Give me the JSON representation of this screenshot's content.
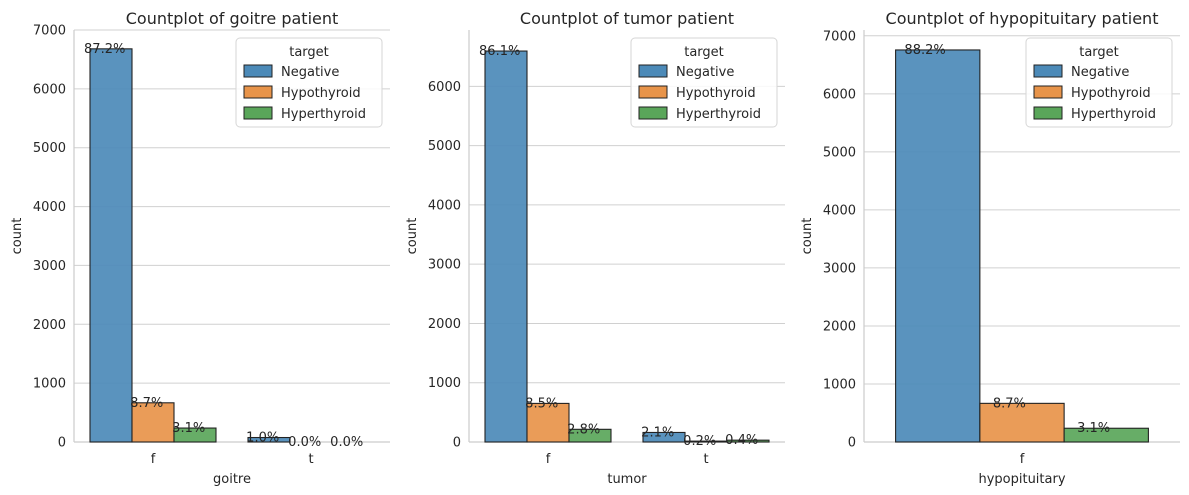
{
  "chart_data": [
    {
      "type": "bar",
      "title": "Countplot of goitre patient",
      "xlabel": "goitre",
      "ylabel": "count",
      "categories": [
        "f",
        "t"
      ],
      "ylim": [
        0,
        7000
      ],
      "yticks": [
        0,
        1000,
        2000,
        3000,
        4000,
        5000,
        6000,
        7000
      ],
      "legend": {
        "title": "target",
        "placement": "top-right"
      },
      "series": [
        {
          "name": "Negative",
          "color": "#4c8ab8",
          "values": [
            6680,
            76
          ],
          "labels": [
            "87.2%",
            "1.0%"
          ]
        },
        {
          "name": "Hypothyroid",
          "color": "#e8944a",
          "values": [
            666,
            0
          ],
          "labels": [
            "8.7%",
            "0.0%"
          ]
        },
        {
          "name": "Hyperthyroid",
          "color": "#5aa65a",
          "values": [
            237,
            0
          ],
          "labels": [
            "3.1%",
            "0.0%"
          ]
        }
      ]
    },
    {
      "type": "bar",
      "title": "Countplot of tumor patient",
      "xlabel": "tumor",
      "ylabel": "count",
      "categories": [
        "f",
        "t"
      ],
      "ylim": [
        0,
        6950
      ],
      "yticks": [
        0,
        1000,
        2000,
        3000,
        4000,
        5000,
        6000
      ],
      "legend": {
        "title": "target",
        "placement": "top-right"
      },
      "series": [
        {
          "name": "Negative",
          "color": "#4c8ab8",
          "values": [
            6595,
            161
          ],
          "labels": [
            "86.1%",
            "2.1%"
          ]
        },
        {
          "name": "Hypothyroid",
          "color": "#e8944a",
          "values": [
            651,
            15
          ],
          "labels": [
            "8.5%",
            "0.2%"
          ]
        },
        {
          "name": "Hyperthyroid",
          "color": "#5aa65a",
          "values": [
            214,
            31
          ],
          "labels": [
            "2.8%",
            "0.4%"
          ]
        }
      ]
    },
    {
      "type": "bar",
      "title": "Countplot of hypopituitary patient",
      "xlabel": "hypopituitary",
      "ylabel": "count",
      "categories": [
        "f"
      ],
      "ylim": [
        0,
        7100
      ],
      "yticks": [
        0,
        1000,
        2000,
        3000,
        4000,
        5000,
        6000,
        7000
      ],
      "legend": {
        "title": "target",
        "placement": "top-right"
      },
      "series": [
        {
          "name": "Negative",
          "color": "#4c8ab8",
          "values": [
            6756
          ],
          "labels": [
            "88.2%"
          ]
        },
        {
          "name": "Hypothyroid",
          "color": "#e8944a",
          "values": [
            666
          ],
          "labels": [
            "8.7%"
          ]
        },
        {
          "name": "Hyperthyroid",
          "color": "#5aa65a",
          "values": [
            237
          ],
          "labels": [
            "3.1%"
          ]
        }
      ]
    }
  ]
}
